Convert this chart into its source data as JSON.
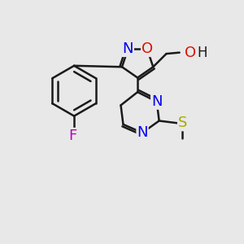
{
  "bg_color": "#e8e8e8",
  "bond_color": "#1a1a1a",
  "atom_colors": {
    "N": "#0000ee",
    "O": "#dd1100",
    "F": "#bb00bb",
    "S": "#aaaa00",
    "H": "#1a1a1a",
    "C": "#1a1a1a"
  },
  "bond_width": 1.8,
  "font_size": 13
}
